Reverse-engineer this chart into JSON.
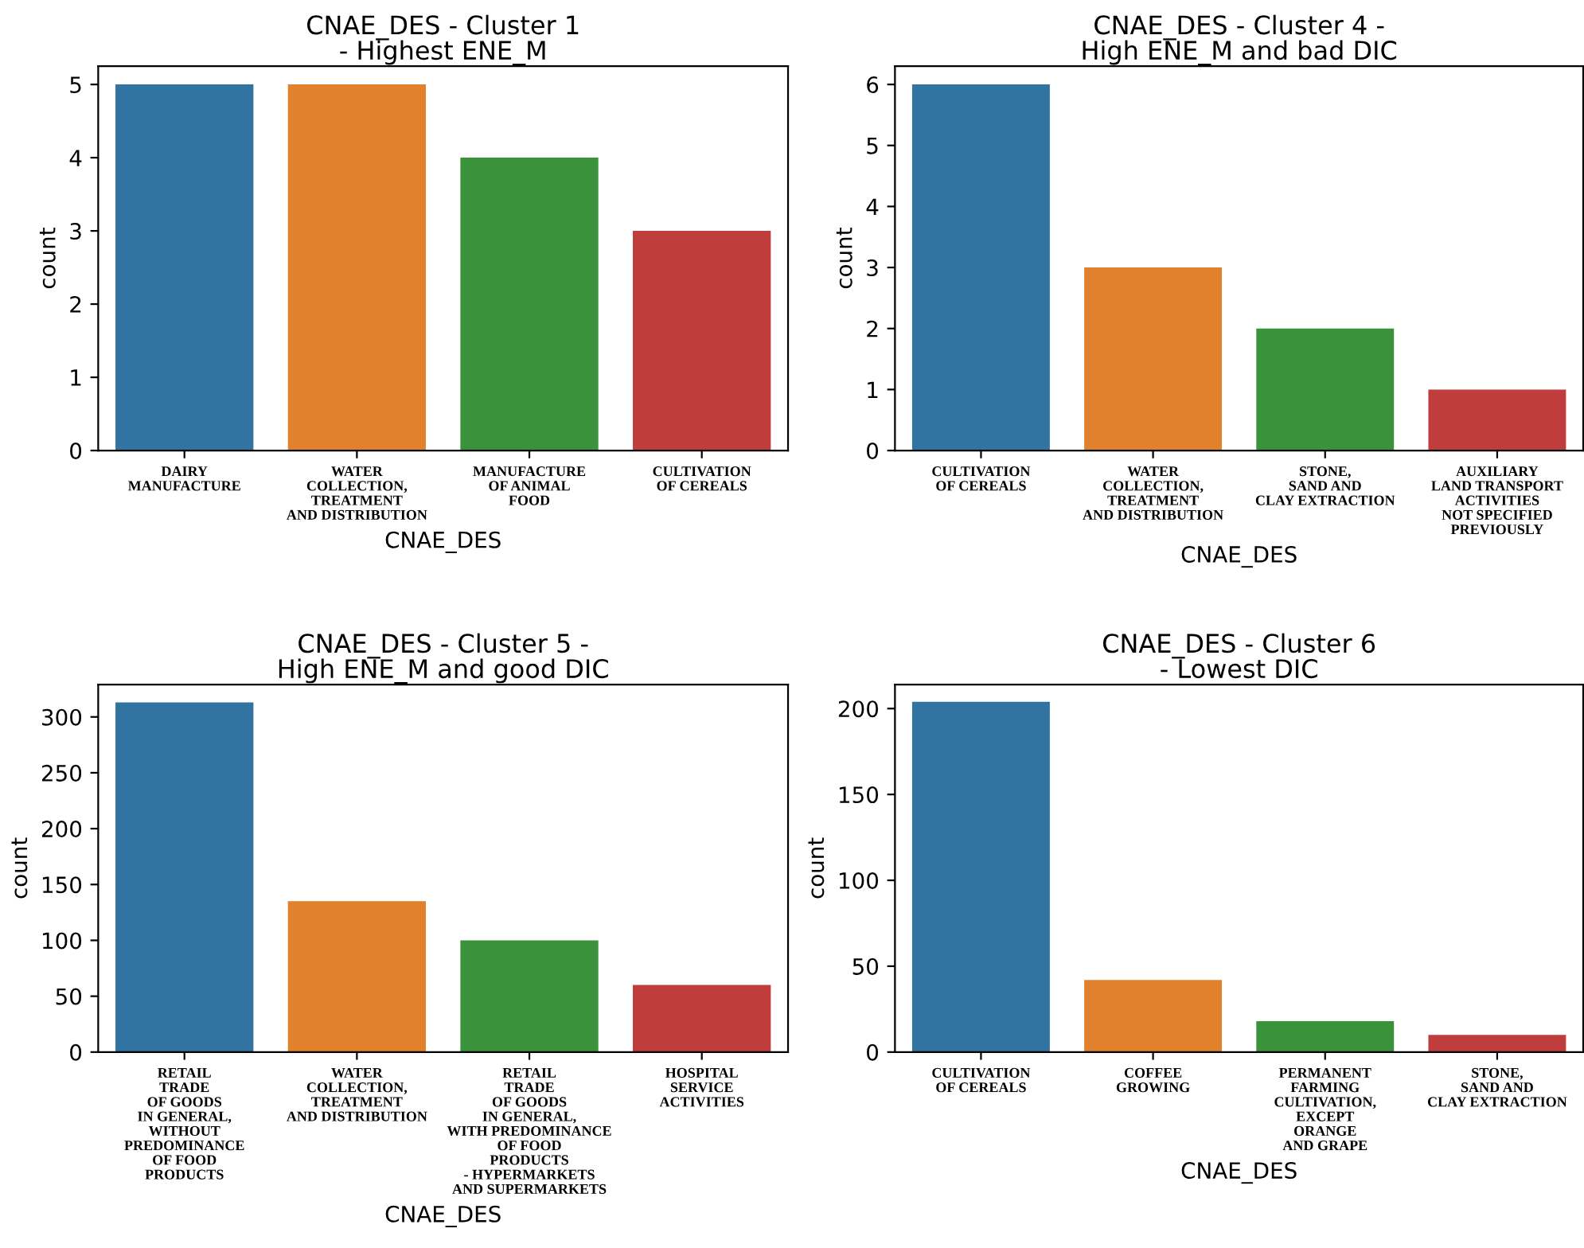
{
  "chart_data": [
    {
      "type": "bar",
      "title": "CNAE_DES - Cluster 1\n- Highest ENE_M",
      "xlabel": "CNAE_DES",
      "ylabel": "count",
      "categories": [
        "DAIRY\nMANUFACTURE",
        "WATER\nCOLLECTION,\nTREATMENT\nAND DISTRIBUTION",
        "MANUFACTURE\nOF ANIMAL\nFOOD",
        "CULTIVATION\nOF CEREALS"
      ],
      "values": [
        5,
        5,
        4,
        3
      ],
      "colors": [
        "#3274a1",
        "#e1812c",
        "#3a923a",
        "#c03d3e"
      ],
      "ylim": [
        0,
        5.25
      ],
      "yticks": [
        0,
        1,
        2,
        3,
        4,
        5
      ],
      "grid": false,
      "legend": false
    },
    {
      "type": "bar",
      "title": "CNAE_DES - Cluster 4 -\nHigh ENE_M and bad DIC",
      "xlabel": "CNAE_DES",
      "ylabel": "count",
      "categories": [
        "CULTIVATION\nOF CEREALS",
        "WATER\nCOLLECTION,\nTREATMENT\nAND DISTRIBUTION",
        "STONE,\nSAND AND\nCLAY EXTRACTION",
        "AUXILIARY\nLAND TRANSPORT\nACTIVITIES\nNOT SPECIFIED\nPREVIOUSLY"
      ],
      "values": [
        6,
        3,
        2,
        1
      ],
      "colors": [
        "#3274a1",
        "#e1812c",
        "#3a923a",
        "#c03d3e"
      ],
      "ylim": [
        0,
        6.3
      ],
      "yticks": [
        0,
        1,
        2,
        3,
        4,
        5,
        6
      ],
      "grid": false,
      "legend": false
    },
    {
      "type": "bar",
      "title": "CNAE_DES - Cluster 5 -\nHigh ENE_M and good DIC",
      "xlabel": "CNAE_DES",
      "ylabel": "count",
      "categories": [
        "RETAIL\nTRADE\nOF GOODS\nIN GENERAL,\nWITHOUT\nPREDOMINANCE\nOF FOOD\nPRODUCTS",
        "WATER\nCOLLECTION,\nTREATMENT\nAND DISTRIBUTION",
        "RETAIL\nTRADE\nOF GOODS\nIN GENERAL,\nWITH PREDOMINANCE\nOF FOOD\nPRODUCTS\n- HYPERMARKETS\nAND SUPERMARKETS",
        "HOSPITAL\nSERVICE\nACTIVITIES"
      ],
      "values": [
        313,
        135,
        100,
        60
      ],
      "colors": [
        "#3274a1",
        "#e1812c",
        "#3a923a",
        "#c03d3e"
      ],
      "ylim": [
        0,
        329
      ],
      "yticks": [
        0,
        50,
        100,
        150,
        200,
        250,
        300
      ],
      "grid": false,
      "legend": false
    },
    {
      "type": "bar",
      "title": "CNAE_DES - Cluster 6\n- Lowest DIC",
      "xlabel": "CNAE_DES",
      "ylabel": "count",
      "categories": [
        "CULTIVATION\nOF CEREALS",
        "COFFEE\nGROWING",
        "PERMANENT\nFARMING\nCULTIVATION,\nEXCEPT\nORANGE\nAND GRAPE",
        "STONE,\nSAND AND\nCLAY EXTRACTION"
      ],
      "values": [
        204,
        42,
        18,
        10
      ],
      "colors": [
        "#3274a1",
        "#e1812c",
        "#3a923a",
        "#c03d3e"
      ],
      "ylim": [
        0,
        214
      ],
      "yticks": [
        0,
        50,
        100,
        150,
        200
      ],
      "grid": false,
      "legend": false
    }
  ]
}
